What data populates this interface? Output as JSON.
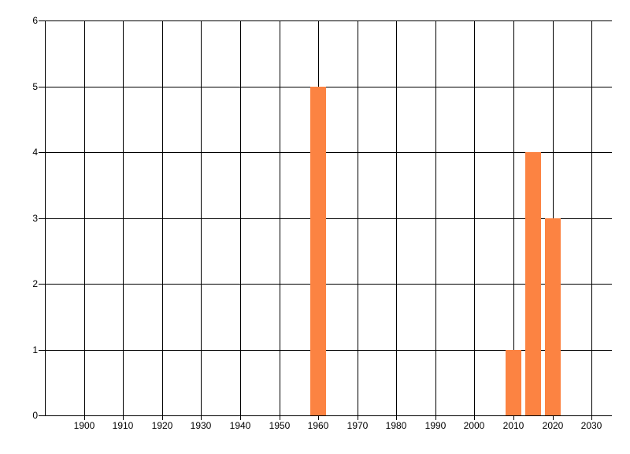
{
  "chart_data": {
    "type": "bar",
    "title": "",
    "xlabel": "",
    "ylabel": "",
    "x": [
      1960,
      2010,
      2015,
      2020
    ],
    "values": [
      5,
      1,
      4,
      3
    ],
    "bar_width_years": 4,
    "xlim": [
      1890,
      2035
    ],
    "ylim": [
      0,
      6
    ],
    "x_ticks": [
      1900,
      1910,
      1920,
      1930,
      1940,
      1950,
      1960,
      1970,
      1980,
      1990,
      2000,
      2010,
      2020,
      2030
    ],
    "y_ticks": [
      0,
      1,
      2,
      3,
      4,
      5,
      6
    ],
    "grid": true,
    "legend_position": "none",
    "bar_color": "#fc8342",
    "line_color": "#000000",
    "background_color": "#ffffff",
    "text_color": "#000000"
  }
}
